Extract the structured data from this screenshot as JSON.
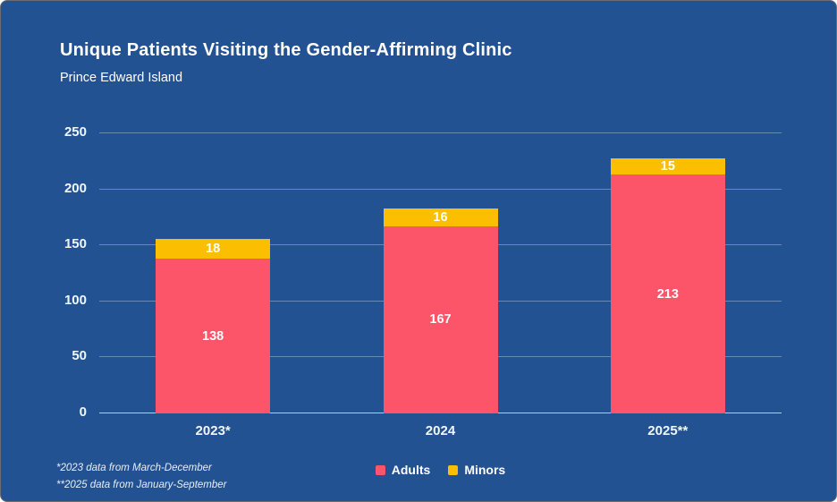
{
  "header": {
    "title": "Unique Patients Visiting the Gender-Affirming Clinic",
    "subtitle": "Prince Edward Island"
  },
  "footnotes": [
    "*2023 data from March-December",
    "**2025 data from January-September"
  ],
  "colors": {
    "background": "#235292",
    "adults": "#fc5468",
    "minors": "#fcbe00",
    "text": "#ffffff",
    "gridline": "rgba(255,255,255,0.32)"
  },
  "chart_data": {
    "type": "bar",
    "stacked": true,
    "title": "Unique Patients Visiting the Gender-Affirming Clinic",
    "subtitle": "Prince Edward Island",
    "categories": [
      "2023*",
      "2024",
      "2025**"
    ],
    "series": [
      {
        "name": "Adults",
        "color": "#fc5468",
        "values": [
          138,
          167,
          213
        ]
      },
      {
        "name": "Minors",
        "color": "#fcbe00",
        "values": [
          18,
          16,
          15
        ]
      }
    ],
    "xlabel": "",
    "ylabel": "",
    "ylim": [
      0,
      250
    ],
    "yticks": [
      0,
      50,
      100,
      150,
      200,
      250
    ],
    "grid": true,
    "legend_position": "bottom"
  }
}
